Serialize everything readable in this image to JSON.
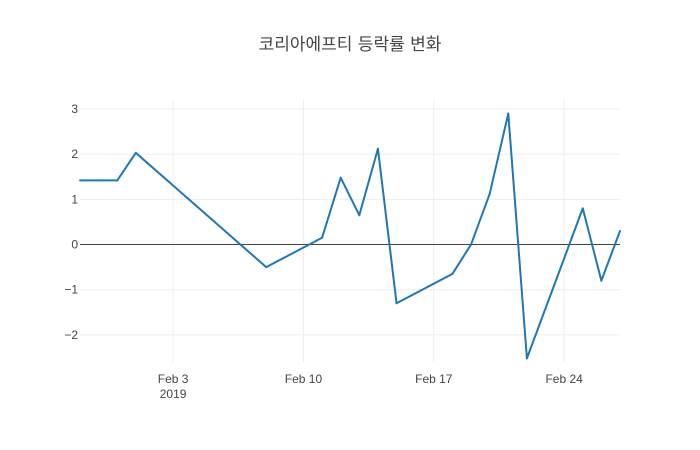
{
  "chart_data": {
    "type": "line",
    "title": "코리아에프티 등락률 변화",
    "xlabel": "",
    "ylabel": "",
    "x_range": [
      "2019-01-29",
      "2019-02-27"
    ],
    "ylim": [
      -2.6,
      3.2
    ],
    "grid": true,
    "zero_line": true,
    "line_color": "#1f77b4",
    "x_ticks": [
      {
        "date": "2019-02-03",
        "label": "Feb 3",
        "sublabel": "2019"
      },
      {
        "date": "2019-02-10",
        "label": "Feb 10",
        "sublabel": ""
      },
      {
        "date": "2019-02-17",
        "label": "Feb 17",
        "sublabel": ""
      },
      {
        "date": "2019-02-24",
        "label": "Feb 24",
        "sublabel": ""
      }
    ],
    "y_ticks": [
      {
        "value": 3,
        "label": "3"
      },
      {
        "value": 2,
        "label": "2"
      },
      {
        "value": 1,
        "label": "1"
      },
      {
        "value": 0,
        "label": "0"
      },
      {
        "value": -1,
        "label": "−1"
      },
      {
        "value": -2,
        "label": "−2"
      }
    ],
    "series": [
      {
        "points": [
          {
            "x": "2019-01-29",
            "y": 1.42
          },
          {
            "x": "2019-01-30",
            "y": 1.42
          },
          {
            "x": "2019-01-31",
            "y": 1.42
          },
          {
            "x": "2019-02-01",
            "y": 2.03
          },
          {
            "x": "2019-02-08",
            "y": -0.5
          },
          {
            "x": "2019-02-11",
            "y": 0.15
          },
          {
            "x": "2019-02-12",
            "y": 1.48
          },
          {
            "x": "2019-02-13",
            "y": 0.65
          },
          {
            "x": "2019-02-14",
            "y": 2.12
          },
          {
            "x": "2019-02-15",
            "y": -1.3
          },
          {
            "x": "2019-02-18",
            "y": -0.65
          },
          {
            "x": "2019-02-19",
            "y": 0.0
          },
          {
            "x": "2019-02-20",
            "y": 1.12
          },
          {
            "x": "2019-02-21",
            "y": 2.9
          },
          {
            "x": "2019-02-22",
            "y": -2.52
          },
          {
            "x": "2019-02-25",
            "y": 0.8
          },
          {
            "x": "2019-02-26",
            "y": -0.8
          },
          {
            "x": "2019-02-27",
            "y": 0.3
          }
        ]
      }
    ]
  }
}
